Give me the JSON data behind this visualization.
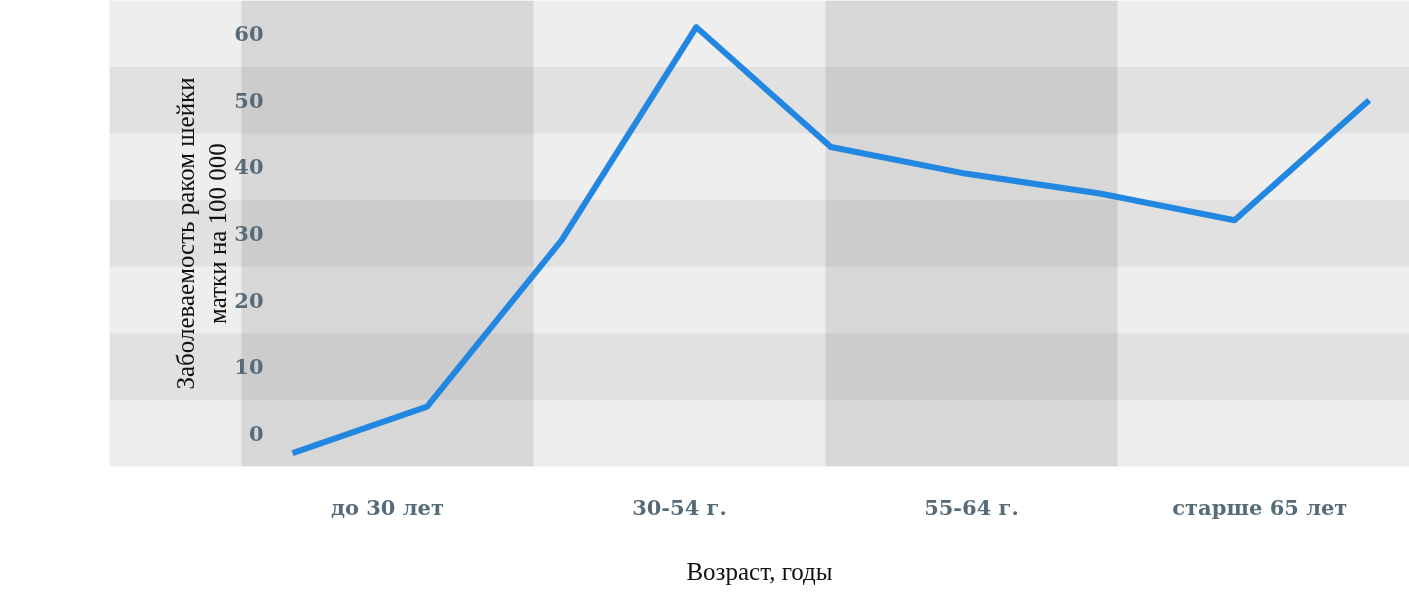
{
  "chart_data": {
    "type": "line",
    "ylabel": "Заболеваемость раком шейки\nматки на 100 000",
    "xlabel": "Возраст, годы",
    "categories": [
      null,
      null,
      null,
      null,
      null,
      null,
      null,
      null,
      null
    ],
    "series": [
      {
        "color": "#2287e0",
        "values": [
          -3,
          4,
          29,
          61,
          43,
          39,
          36,
          32,
          50
        ]
      }
    ],
    "annotations": [
      "до 30 лет",
      "30-54 г.",
      "55-64 г.",
      "старше 65  лет"
    ],
    "ylim": [
      -5,
      65
    ],
    "yticks": [
      0,
      10,
      20,
      30,
      40,
      50,
      60
    ],
    "bands": [
      {
        "axis": "y",
        "from": 5,
        "to": 15,
        "color": "#e2e2e2"
      },
      {
        "axis": "y",
        "from": 25,
        "to": 35,
        "color": "#e2e2e2"
      },
      {
        "axis": "y",
        "from": 45,
        "to": 55,
        "color": "#e2e2e2"
      }
    ],
    "tick_labels": "y",
    "line_style": "solid"
  }
}
